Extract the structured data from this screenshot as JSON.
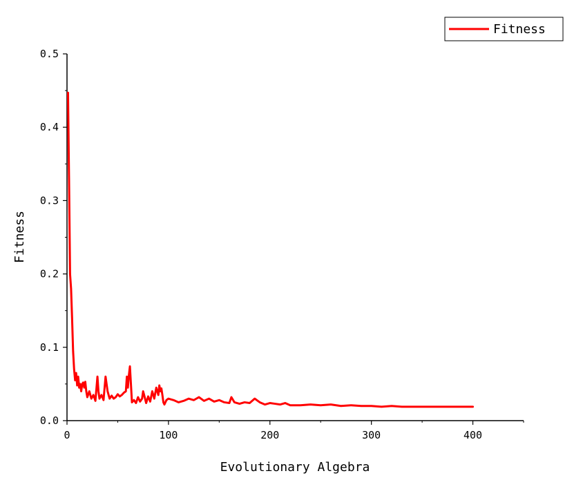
{
  "chart_data": {
    "type": "line",
    "title": "",
    "xlabel": "Evolutionary Algebra",
    "ylabel": "Fitness",
    "xlim": [
      0,
      450
    ],
    "ylim": [
      0,
      0.5
    ],
    "x_ticks": [
      0,
      100,
      200,
      300,
      400
    ],
    "x_tick_labels": [
      "0",
      "100",
      "200",
      "300",
      "400"
    ],
    "y_ticks": [
      0,
      0.1,
      0.2,
      0.3,
      0.4,
      0.5
    ],
    "y_tick_labels": [
      "0.0",
      "0.1",
      "0.2",
      "0.3",
      "0.4",
      "0.5"
    ],
    "grid": false,
    "legend": {
      "position": "top-right",
      "entries": [
        "Fitness"
      ]
    },
    "series": [
      {
        "name": "Fitness",
        "color": "#ff0000",
        "x": [
          1,
          2,
          3,
          4,
          5,
          6,
          7,
          8,
          9,
          10,
          11,
          12,
          13,
          14,
          15,
          16,
          17,
          18,
          19,
          20,
          22,
          24,
          26,
          28,
          30,
          31,
          32,
          34,
          36,
          38,
          40,
          41,
          42,
          44,
          46,
          48,
          50,
          52,
          54,
          56,
          58,
          59,
          60,
          61,
          62,
          63,
          64,
          66,
          68,
          70,
          72,
          74,
          75,
          76,
          78,
          80,
          82,
          84,
          86,
          88,
          90,
          91,
          92,
          93,
          94,
          95,
          96,
          98,
          100,
          105,
          110,
          115,
          120,
          125,
          130,
          135,
          140,
          145,
          150,
          155,
          160,
          162,
          165,
          170,
          175,
          180,
          185,
          190,
          195,
          200,
          205,
          210,
          215,
          220,
          230,
          240,
          250,
          260,
          270,
          280,
          290,
          300,
          310,
          320,
          330,
          340,
          350,
          360,
          370,
          380,
          390,
          400
        ],
        "y": [
          0.447,
          0.33,
          0.2,
          0.18,
          0.14,
          0.095,
          0.07,
          0.055,
          0.065,
          0.048,
          0.06,
          0.045,
          0.05,
          0.04,
          0.05,
          0.052,
          0.045,
          0.053,
          0.04,
          0.032,
          0.04,
          0.03,
          0.035,
          0.027,
          0.06,
          0.04,
          0.03,
          0.035,
          0.028,
          0.06,
          0.04,
          0.035,
          0.03,
          0.034,
          0.03,
          0.032,
          0.036,
          0.033,
          0.035,
          0.038,
          0.04,
          0.06,
          0.045,
          0.062,
          0.074,
          0.05,
          0.025,
          0.028,
          0.024,
          0.032,
          0.026,
          0.03,
          0.04,
          0.035,
          0.024,
          0.033,
          0.026,
          0.04,
          0.03,
          0.045,
          0.035,
          0.048,
          0.04,
          0.044,
          0.035,
          0.025,
          0.022,
          0.028,
          0.03,
          0.028,
          0.025,
          0.027,
          0.03,
          0.028,
          0.032,
          0.027,
          0.03,
          0.026,
          0.028,
          0.025,
          0.024,
          0.032,
          0.025,
          0.023,
          0.025,
          0.024,
          0.03,
          0.025,
          0.022,
          0.024,
          0.023,
          0.022,
          0.024,
          0.021,
          0.021,
          0.022,
          0.021,
          0.022,
          0.02,
          0.021,
          0.02,
          0.02,
          0.019,
          0.02,
          0.019,
          0.019,
          0.019,
          0.019,
          0.019,
          0.019,
          0.019,
          0.019
        ]
      }
    ]
  }
}
